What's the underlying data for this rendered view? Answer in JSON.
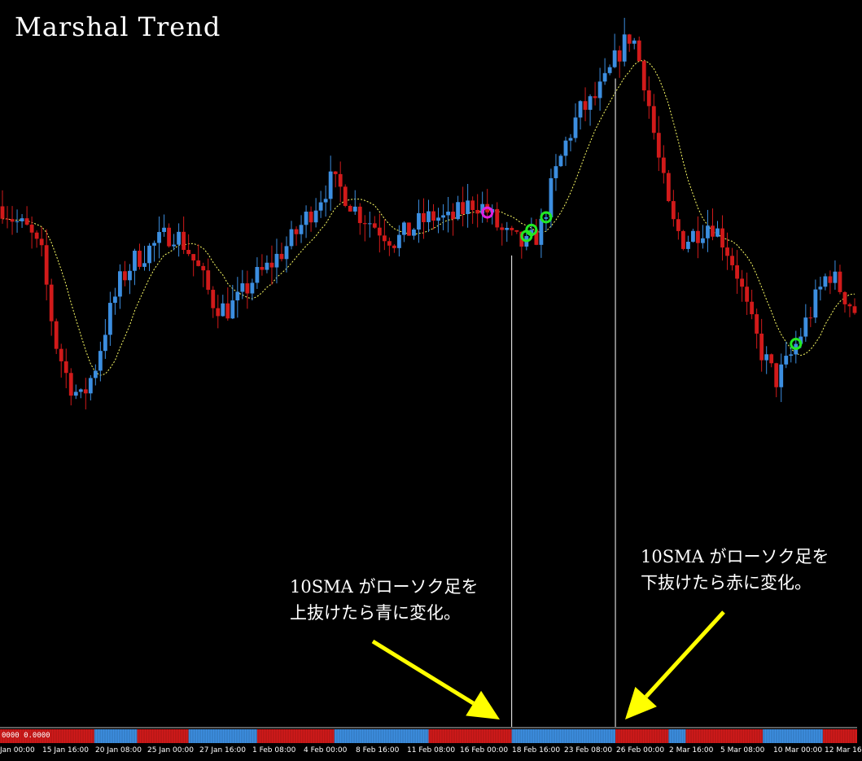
{
  "title": "Marshal Trend",
  "annotations": {
    "up_line1": "10SMA がローソク足を",
    "up_line2": "上抜けたら青に変化。",
    "down_line1": "10SMA がローソク足を",
    "down_line2": "下抜けたら赤に変化。"
  },
  "indicator_value": "0000 0.0000",
  "colors": {
    "bull": "#3c8ee0",
    "bear": "#d11a1a",
    "sma": "#ffff66",
    "arrow": "#ffff00",
    "signal_buy": "#22e822",
    "signal_sell": "#e020e0",
    "background": "#000000"
  },
  "chart_data": {
    "type": "candlestick",
    "title": "Marshal Trend",
    "x_tick_labels": [
      "Jan 00:00",
      "15 Jan 16:00",
      "20 Jan 08:00",
      "25 Jan 00:00",
      "27 Jan 16:00",
      "1 Feb 08:00",
      "4 Feb 00:00",
      "8 Feb 16:00",
      "11 Feb 08:00",
      "16 Feb 00:00",
      "18 Feb 16:00",
      "23 Feb 08:00",
      "26 Feb 00:00",
      "2 Mar 16:00",
      "5 Mar 08:00",
      "10 Mar 00:00",
      "12 Mar 16"
    ],
    "price_path": [
      0.65,
      0.62,
      0.6,
      0.55,
      0.38,
      0.3,
      0.26,
      0.32,
      0.42,
      0.5,
      0.54,
      0.56,
      0.58,
      0.6,
      0.57,
      0.52,
      0.46,
      0.44,
      0.46,
      0.5,
      0.52,
      0.55,
      0.58,
      0.62,
      0.66,
      0.7,
      0.68,
      0.64,
      0.62,
      0.6,
      0.58,
      0.6,
      0.62,
      0.63,
      0.62,
      0.64,
      0.66,
      0.64,
      0.6,
      0.58,
      0.57,
      0.6,
      0.7,
      0.78,
      0.84,
      0.86,
      0.9,
      0.96,
      1.0,
      0.9,
      0.75,
      0.62,
      0.58,
      0.6,
      0.62,
      0.58,
      0.52,
      0.42,
      0.35,
      0.3,
      0.34,
      0.4,
      0.46,
      0.52,
      0.48,
      0.44
    ],
    "sma_period": 10,
    "series": [
      {
        "name": "bull",
        "color": "#3c8ee0"
      },
      {
        "name": "bear",
        "color": "#d11a1a"
      }
    ],
    "signals": [
      {
        "type": "sell",
        "bar": 0.57
      },
      {
        "type": "buy",
        "bar": 0.617
      },
      {
        "type": "buy",
        "bar": 0.623
      },
      {
        "type": "buy",
        "bar": 0.638
      },
      {
        "type": "buy",
        "bar": 0.93
      }
    ],
    "marker_lines": [
      0.597,
      0.718
    ],
    "indicator_state": [
      {
        "from": 0.0,
        "to": 0.11,
        "state": "bear"
      },
      {
        "from": 0.11,
        "to": 0.16,
        "state": "bull"
      },
      {
        "from": 0.16,
        "to": 0.22,
        "state": "bear"
      },
      {
        "from": 0.22,
        "to": 0.3,
        "state": "bull"
      },
      {
        "from": 0.3,
        "to": 0.39,
        "state": "bear"
      },
      {
        "from": 0.39,
        "to": 0.5,
        "state": "bull"
      },
      {
        "from": 0.5,
        "to": 0.597,
        "state": "bear"
      },
      {
        "from": 0.597,
        "to": 0.718,
        "state": "bull"
      },
      {
        "from": 0.718,
        "to": 0.78,
        "state": "bear"
      },
      {
        "from": 0.78,
        "to": 0.8,
        "state": "bull"
      },
      {
        "from": 0.8,
        "to": 0.89,
        "state": "bear"
      },
      {
        "from": 0.89,
        "to": 0.96,
        "state": "bull"
      },
      {
        "from": 0.96,
        "to": 1.0,
        "state": "bear"
      }
    ]
  }
}
